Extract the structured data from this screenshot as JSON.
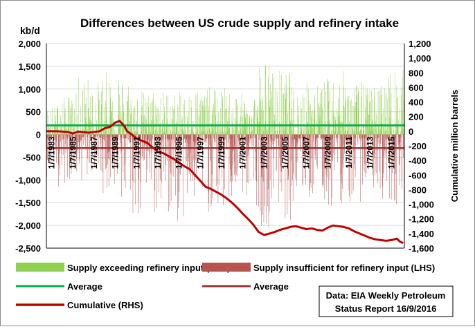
{
  "chart_data": {
    "type": "bar",
    "title": "Differences between US crude supply and refinery intake",
    "left_unit": "kb/d",
    "right_axis_label": "Cumulative million barrels",
    "left_ylim": [
      -2500,
      2000
    ],
    "left_ticks": [
      "2,000",
      "1,500",
      "1,000",
      "500",
      "0",
      "-500",
      "-1,000",
      "-1,500",
      "-2,000",
      "-2,500"
    ],
    "right_ylim": [
      -1600,
      1200
    ],
    "right_ticks": [
      "1,200",
      "1,000",
      "800",
      "600",
      "400",
      "200",
      "0",
      "-200",
      "-400",
      "-600",
      "-800",
      "-1,000",
      "-1,200",
      "-1,400",
      "-1,600"
    ],
    "x_range": [
      1983.0,
      2016.72
    ],
    "x_tick_labels": [
      "1/7/1983",
      "1/7/1985",
      "1/7/1987",
      "1/7/1989",
      "1/7/1991",
      "1/7/1993",
      "1/7/1995",
      "1/7/1997",
      "1/7/1999",
      "1/7/2001",
      "1/7/2003",
      "1/7/2005",
      "1/7/2007",
      "1/7/2009",
      "1/7/2011",
      "1/7/2013",
      "1/7/2015"
    ],
    "x_tick_years": [
      1983,
      1985,
      1987,
      1989,
      1991,
      1993,
      1995,
      1997,
      1999,
      2001,
      2003,
      2005,
      2007,
      2009,
      2011,
      2013,
      2015
    ],
    "grid": "horizontal",
    "legend_position": "bottom",
    "colors": {
      "positive_bar": "#92d050",
      "negative_bar": "#b85450",
      "average_positive": "#00b050",
      "average_negative": "#953735",
      "cumulative": "#c00000"
    },
    "series": [
      {
        "name": "Supply exceeding refinery input (LHS)",
        "kind": "bar-envelope",
        "note_envelope_by_year": [
          [
            1983,
            650
          ],
          [
            1984,
            850
          ],
          [
            1985,
            900
          ],
          [
            1986,
            1300
          ],
          [
            1987,
            1200
          ],
          [
            1988,
            1400
          ],
          [
            1989,
            1650
          ],
          [
            1990,
            1300
          ],
          [
            1991,
            1000
          ],
          [
            1992,
            950
          ],
          [
            1993,
            1050
          ],
          [
            1994,
            1000
          ],
          [
            1995,
            950
          ],
          [
            1996,
            1000
          ],
          [
            1997,
            1100
          ],
          [
            1998,
            1050
          ],
          [
            1999,
            1050
          ],
          [
            2000,
            1000
          ],
          [
            2001,
            900
          ],
          [
            2002,
            1000
          ],
          [
            2003,
            1650
          ],
          [
            2004,
            1450
          ],
          [
            2005,
            1400
          ],
          [
            2006,
            1100
          ],
          [
            2007,
            1200
          ],
          [
            2008,
            1150
          ],
          [
            2009,
            1250
          ],
          [
            2010,
            1400
          ],
          [
            2011,
            1300
          ],
          [
            2012,
            1200
          ],
          [
            2013,
            1100
          ],
          [
            2014,
            1200
          ],
          [
            2015,
            1450
          ],
          [
            2016,
            1450
          ]
        ]
      },
      {
        "name": "Supply insufficient for refinery input (LHS)",
        "kind": "bar-envelope",
        "note_envelope_by_year": [
          [
            1983,
            -950
          ],
          [
            1984,
            -1150
          ],
          [
            1985,
            -1000
          ],
          [
            1986,
            -1050
          ],
          [
            1987,
            -900
          ],
          [
            1988,
            -1300
          ],
          [
            1989,
            -1200
          ],
          [
            1990,
            -1650
          ],
          [
            1991,
            -1950
          ],
          [
            1992,
            -1700
          ],
          [
            1993,
            -1900
          ],
          [
            1994,
            -1850
          ],
          [
            1995,
            -2000
          ],
          [
            1996,
            -1800
          ],
          [
            1997,
            -1700
          ],
          [
            1998,
            -1750
          ],
          [
            1999,
            -1850
          ],
          [
            2000,
            -1600
          ],
          [
            2001,
            -1500
          ],
          [
            2002,
            -1600
          ],
          [
            2003,
            -2050
          ],
          [
            2004,
            -1700
          ],
          [
            2005,
            -1900
          ],
          [
            2006,
            -1600
          ],
          [
            2007,
            -1500
          ],
          [
            2008,
            -1450
          ],
          [
            2009,
            -1700
          ],
          [
            2010,
            -1550
          ],
          [
            2011,
            -1600
          ],
          [
            2012,
            -1500
          ],
          [
            2013,
            -1300
          ],
          [
            2014,
            -1450
          ],
          [
            2015,
            -1550
          ],
          [
            2016,
            -1200
          ]
        ]
      },
      {
        "name": "Average",
        "kind": "hline",
        "axis": "left",
        "value": 200
      },
      {
        "name": "Average",
        "kind": "hline",
        "axis": "left",
        "value": -300
      },
      {
        "name": "Cumulative (RHS)",
        "kind": "line",
        "axis": "right",
        "x": [
          1983.0,
          1984.0,
          1985.0,
          1985.5,
          1986.0,
          1987.0,
          1988.0,
          1988.5,
          1989.0,
          1989.5,
          1989.9,
          1990.3,
          1990.6,
          1991.0,
          1991.5,
          1992.0,
          1992.5,
          1993.0,
          1993.5,
          1994.0,
          1994.5,
          1995.0,
          1995.5,
          1996.0,
          1996.5,
          1997.0,
          1997.5,
          1998.0,
          1998.5,
          1999.0,
          1999.5,
          2000.0,
          2000.5,
          2001.0,
          2001.5,
          2002.0,
          2002.5,
          2003.0,
          2003.5,
          2004.0,
          2004.5,
          2005.0,
          2005.5,
          2006.0,
          2006.5,
          2007.0,
          2007.5,
          2008.0,
          2008.5,
          2009.0,
          2009.5,
          2010.0,
          2010.5,
          2011.0,
          2011.5,
          2012.0,
          2012.5,
          2013.0,
          2013.5,
          2014.0,
          2014.5,
          2015.0,
          2015.5,
          2016.0,
          2016.3,
          2016.6
        ],
        "values": [
          0,
          0,
          -10,
          -30,
          -5,
          -20,
          0,
          40,
          60,
          120,
          140,
          80,
          0,
          -40,
          -100,
          -130,
          -160,
          -220,
          -280,
          -300,
          -340,
          -380,
          -430,
          -480,
          -520,
          -600,
          -680,
          -760,
          -790,
          -830,
          -870,
          -920,
          -980,
          -1050,
          -1130,
          -1200,
          -1280,
          -1380,
          -1420,
          -1400,
          -1380,
          -1350,
          -1330,
          -1310,
          -1300,
          -1320,
          -1340,
          -1330,
          -1350,
          -1360,
          -1320,
          -1290,
          -1300,
          -1310,
          -1330,
          -1370,
          -1400,
          -1430,
          -1460,
          -1480,
          -1490,
          -1500,
          -1490,
          -1470,
          -1510,
          -1530
        ]
      }
    ]
  },
  "legend": {
    "pos_bar": "Supply exceeding refinery input (LHS)",
    "neg_bar": "Supply insufficient for refinery input (LHS)",
    "avg_pos": "Average",
    "avg_neg": "Average",
    "cumulative": "Cumulative (RHS)"
  },
  "source": {
    "line1": "Data: EIA Weekly Petroleum",
    "line2": "Status Report 16/9/2016"
  }
}
